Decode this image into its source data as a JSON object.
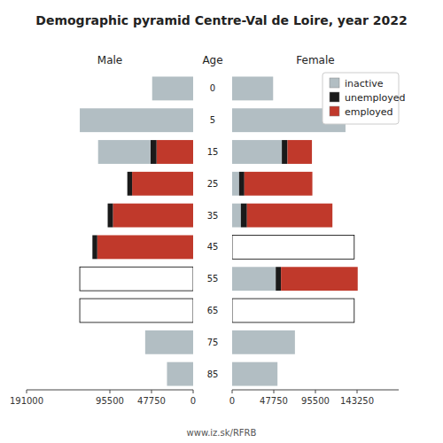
{
  "title": "Demographic pyramid Centre-Val de Loire, year 2022",
  "annotations": [
    "www.iz.sk/RFRB"
  ],
  "chart_data": [
    {
      "type": "bar",
      "orientation": "horizontal",
      "stacked": true,
      "title": "Male",
      "ylabel": "Age",
      "categories": [
        "85",
        "75",
        "65",
        "55",
        "45",
        "35",
        "25",
        "15",
        "5",
        "0"
      ],
      "series": [
        {
          "color": "#ffffff",
          "values": [
            0,
            0,
            130000,
            130000,
            0,
            0,
            0,
            0,
            0,
            0
          ]
        },
        {
          "color": "#c0392b",
          "values": [
            0,
            0,
            0,
            0,
            110000,
            92000,
            70000,
            42000,
            0,
            0
          ]
        },
        {
          "color": "#1a1a1a",
          "values": [
            0,
            0,
            0,
            0,
            5500,
            6000,
            5500,
            7000,
            0,
            0
          ]
        },
        {
          "color": "#b2bec3",
          "values": [
            30000,
            55000,
            0,
            0,
            0,
            0,
            0,
            60000,
            130000,
            47000
          ]
        }
      ],
      "xlim": [
        191000,
        0
      ],
      "xticks": [
        191000,
        95500,
        47750,
        0
      ]
    },
    {
      "type": "bar",
      "orientation": "horizontal",
      "stacked": true,
      "title": "Female",
      "categories": [
        "85",
        "75",
        "65",
        "55",
        "45",
        "35",
        "25",
        "15",
        "5",
        "0"
      ],
      "series": [
        {
          "color": "#ffffff",
          "values": [
            0,
            0,
            140000,
            0,
            140000,
            0,
            0,
            0,
            0,
            0
          ]
        },
        {
          "name": "inactive",
          "color": "#b2bec3",
          "values": [
            52000,
            72000,
            0,
            50000,
            0,
            10000,
            8000,
            57000,
            130000,
            47000
          ]
        },
        {
          "name": "unemployed",
          "color": "#1a1a1a",
          "values": [
            0,
            0,
            0,
            6000,
            0,
            7000,
            6000,
            6500,
            0,
            0
          ]
        },
        {
          "name": "employed",
          "color": "#c0392b",
          "values": [
            0,
            0,
            0,
            88000,
            0,
            98000,
            78000,
            28000,
            0,
            0
          ]
        }
      ],
      "xlim": [
        0,
        191000
      ],
      "xticks": [
        0,
        47750,
        95500,
        143250
      ],
      "legend": "upper right"
    }
  ]
}
